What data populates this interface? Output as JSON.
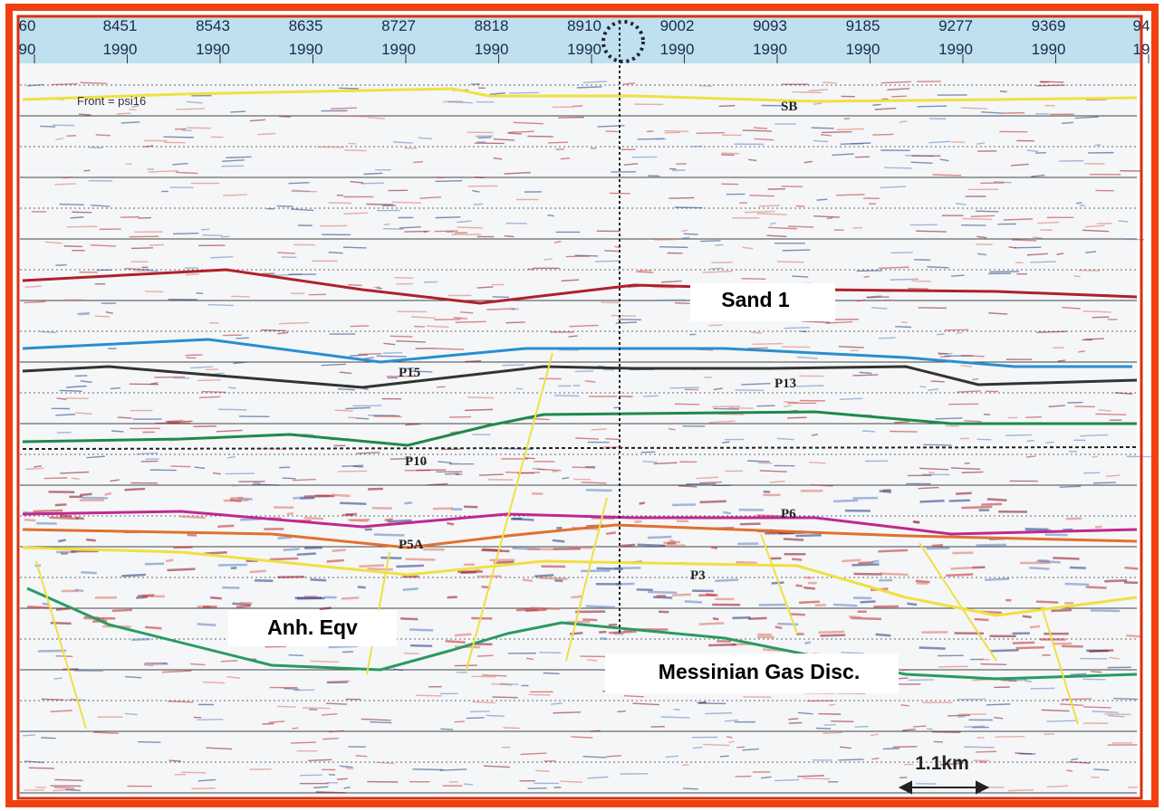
{
  "header": {
    "trace_numbers": [
      60,
      8451,
      8543,
      8635,
      8727,
      8818,
      8910,
      9002,
      9093,
      9185,
      9277,
      9369,
      94
    ],
    "dates": [
      "90",
      "1990",
      "1990",
      "1990",
      "1990",
      "1990",
      "1990",
      "1990",
      "1990",
      "1990",
      "1990",
      "1990",
      "19"
    ]
  },
  "annotations": {
    "front": "Front = psi16",
    "horizons": [
      "SB",
      "P15",
      "P13",
      "P10",
      "P6",
      "P5A",
      "P3"
    ],
    "boxes": [
      "Sand 1",
      "Anh. Eqv",
      "Messinian Gas Disc."
    ],
    "scale": "1.1km"
  }
}
